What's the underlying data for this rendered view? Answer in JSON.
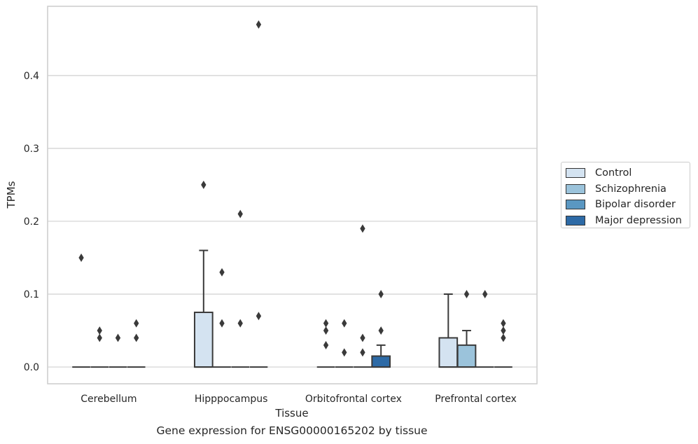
{
  "chart_data": {
    "type": "box",
    "xlabel": "Tissue",
    "ylabel": "TPMs",
    "caption": "Gene expression for ENSG00000165202 by tissue",
    "ylim": [
      -0.023,
      0.495
    ],
    "yticks": [
      "0.0",
      "0.1",
      "0.2",
      "0.3",
      "0.4"
    ],
    "ytick_values": [
      0.0,
      0.1,
      0.2,
      0.3,
      0.4
    ],
    "grid": "horizontal",
    "legend_placement": "right",
    "categories": [
      "Cerebellum",
      "Hipppocampus",
      "Orbitofrontal cortex",
      "Prefrontal cortex"
    ],
    "series": [
      {
        "name": "Control",
        "color": "#d4e3f1",
        "boxes": [
          {
            "q1": 0,
            "median": 0,
            "q3": 0,
            "whisker_low": 0,
            "whisker_high": 0,
            "outliers": [
              0.15
            ]
          },
          {
            "q1": 0,
            "median": 0,
            "q3": 0.075,
            "whisker_low": 0,
            "whisker_high": 0.16,
            "outliers": [
              0.25
            ]
          },
          {
            "q1": 0,
            "median": 0,
            "q3": 0,
            "whisker_low": 0,
            "whisker_high": 0,
            "outliers": [
              0.03,
              0.05,
              0.06
            ]
          },
          {
            "q1": 0,
            "median": 0,
            "q3": 0.04,
            "whisker_low": 0,
            "whisker_high": 0.1,
            "outliers": []
          }
        ]
      },
      {
        "name": "Schizophrenia",
        "color": "#9bc3db",
        "boxes": [
          {
            "q1": 0,
            "median": 0,
            "q3": 0,
            "whisker_low": 0,
            "whisker_high": 0,
            "outliers": [
              0.04,
              0.05
            ]
          },
          {
            "q1": 0,
            "median": 0,
            "q3": 0,
            "whisker_low": 0,
            "whisker_high": 0,
            "outliers": [
              0.06,
              0.13
            ]
          },
          {
            "q1": 0,
            "median": 0,
            "q3": 0,
            "whisker_low": 0,
            "whisker_high": 0,
            "outliers": [
              0.02,
              0.06
            ]
          },
          {
            "q1": 0,
            "median": 0,
            "q3": 0.03,
            "whisker_low": 0,
            "whisker_high": 0.05,
            "outliers": [
              0.1
            ]
          }
        ]
      },
      {
        "name": "Bipolar disorder",
        "color": "#5a97c2",
        "boxes": [
          {
            "q1": 0,
            "median": 0,
            "q3": 0,
            "whisker_low": 0,
            "whisker_high": 0,
            "outliers": [
              0.04
            ]
          },
          {
            "q1": 0,
            "median": 0,
            "q3": 0,
            "whisker_low": 0,
            "whisker_high": 0,
            "outliers": [
              0.06,
              0.21
            ]
          },
          {
            "q1": 0,
            "median": 0,
            "q3": 0,
            "whisker_low": 0,
            "whisker_high": 0,
            "outliers": [
              0.02,
              0.04,
              0.19
            ]
          },
          {
            "q1": 0,
            "median": 0,
            "q3": 0,
            "whisker_low": 0,
            "whisker_high": 0,
            "outliers": [
              0.1
            ]
          }
        ]
      },
      {
        "name": "Major depression",
        "color": "#2d6aa6",
        "boxes": [
          {
            "q1": 0,
            "median": 0,
            "q3": 0,
            "whisker_low": 0,
            "whisker_high": 0,
            "outliers": [
              0.04,
              0.06
            ]
          },
          {
            "q1": 0,
            "median": 0,
            "q3": 0,
            "whisker_low": 0,
            "whisker_high": 0,
            "outliers": [
              0.07,
              0.47
            ]
          },
          {
            "q1": 0,
            "median": 0,
            "q3": 0.015,
            "whisker_low": 0,
            "whisker_high": 0.03,
            "outliers": [
              0.05,
              0.1
            ]
          },
          {
            "q1": 0,
            "median": 0,
            "q3": 0,
            "whisker_low": 0,
            "whisker_high": 0,
            "outliers": [
              0.04,
              0.05,
              0.06
            ]
          }
        ]
      }
    ]
  }
}
